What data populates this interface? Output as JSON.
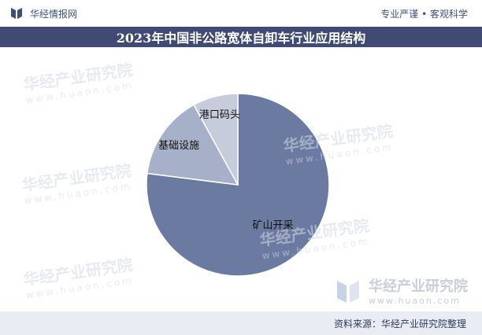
{
  "header": {
    "brand_name": "华经情报网",
    "slogan": "专业严谨 • 客观科学"
  },
  "title": "2023年中国非公路宽体自卸车行业应用结构",
  "watermark": {
    "text": "华经产业研究院",
    "url": "www.huaon.com"
  },
  "footer": {
    "source": "资料来源：华经产业研究院整理"
  },
  "colors": {
    "title_bg": "#404a74",
    "footer_bg": "#e9ecf3",
    "slice_mining": "#6a7aa0",
    "slice_infrastructure": "#a6b0c8",
    "slice_port": "#c7ccda"
  },
  "chart_data": {
    "type": "pie",
    "title": "2023年中国非公路宽体自卸车行业应用结构",
    "start_angle_deg": 0,
    "direction": "clockwise",
    "slices": [
      {
        "label": "矿山开采",
        "value": 77
      },
      {
        "label": "基础设施",
        "value": 15
      },
      {
        "label": "港口码头",
        "value": 8
      }
    ],
    "legend": "none"
  }
}
